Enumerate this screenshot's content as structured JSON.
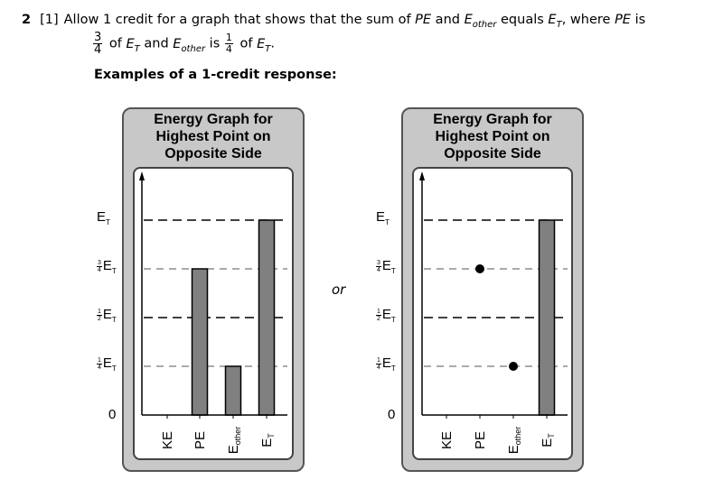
{
  "question": {
    "number": "2",
    "mark": "[1]",
    "line1_a": "Allow 1 credit for a graph that shows that the sum of ",
    "pe": "PE",
    "line1_b": " and ",
    "e_other_base": "E",
    "e_other_sub": "other",
    "line1_c": " equals ",
    "et_base": "E",
    "et_sub": "T",
    "line1_d": ", where ",
    "line1_e": " is",
    "frac_three_num": "3",
    "frac_three_den": "4",
    "line2_a": " of ",
    "line2_b": " and ",
    "line2_c": " is ",
    "frac_one_num": "1",
    "frac_one_den": "4",
    "line2_d": " of ",
    "line2_end": "."
  },
  "examples_heading": "Examples of a 1-credit response:",
  "or_label": "or",
  "graph_title": [
    "Energy Graph for",
    "Highest Point on",
    "Opposite Side"
  ],
  "y_axis": {
    "levels": [
      {
        "frac_num": "",
        "frac_den": "",
        "base": "E",
        "sub": "T"
      },
      {
        "frac_num": "3",
        "frac_den": "4",
        "base": "E",
        "sub": "T"
      },
      {
        "frac_num": "1",
        "frac_den": "2",
        "base": "E",
        "sub": "T"
      },
      {
        "frac_num": "1",
        "frac_den": "4",
        "base": "E",
        "sub": "T"
      }
    ],
    "zero": "0"
  },
  "x_axis": {
    "categories": [
      {
        "base": "KE",
        "sub": ""
      },
      {
        "base": "PE",
        "sub": ""
      },
      {
        "base": "E",
        "sub": "other"
      },
      {
        "base": "E",
        "sub": "T"
      }
    ]
  },
  "chart_data": [
    {
      "type": "bar",
      "title": "Energy Graph for Highest Point on Opposite Side",
      "categories": [
        "KE",
        "PE",
        "E_other",
        "E_T"
      ],
      "values": [
        0,
        0.75,
        0.25,
        1.0
      ],
      "ylim": [
        0,
        1
      ],
      "y_ticks": [
        0,
        0.25,
        0.5,
        0.75,
        1.0
      ],
      "grid": "dashed at each tick",
      "bar_color": "#808080"
    },
    {
      "type": "scatter",
      "title": "Energy Graph for Highest Point on Opposite Side",
      "categories": [
        "KE",
        "PE",
        "E_other",
        "E_T"
      ],
      "points": [
        {
          "category": "PE",
          "value": 0.75
        },
        {
          "category": "E_other",
          "value": 0.25
        }
      ],
      "bars": [
        {
          "category": "E_T",
          "value": 1.0
        }
      ],
      "ylim": [
        0,
        1
      ],
      "y_ticks": [
        0,
        0.25,
        0.5,
        0.75,
        1.0
      ],
      "grid": "dashed at each tick",
      "bar_color": "#808080",
      "point_color": "#000000"
    }
  ],
  "colors": {
    "panel_bg": "#c8c8c8",
    "bar": "#808080",
    "point": "#000000"
  }
}
